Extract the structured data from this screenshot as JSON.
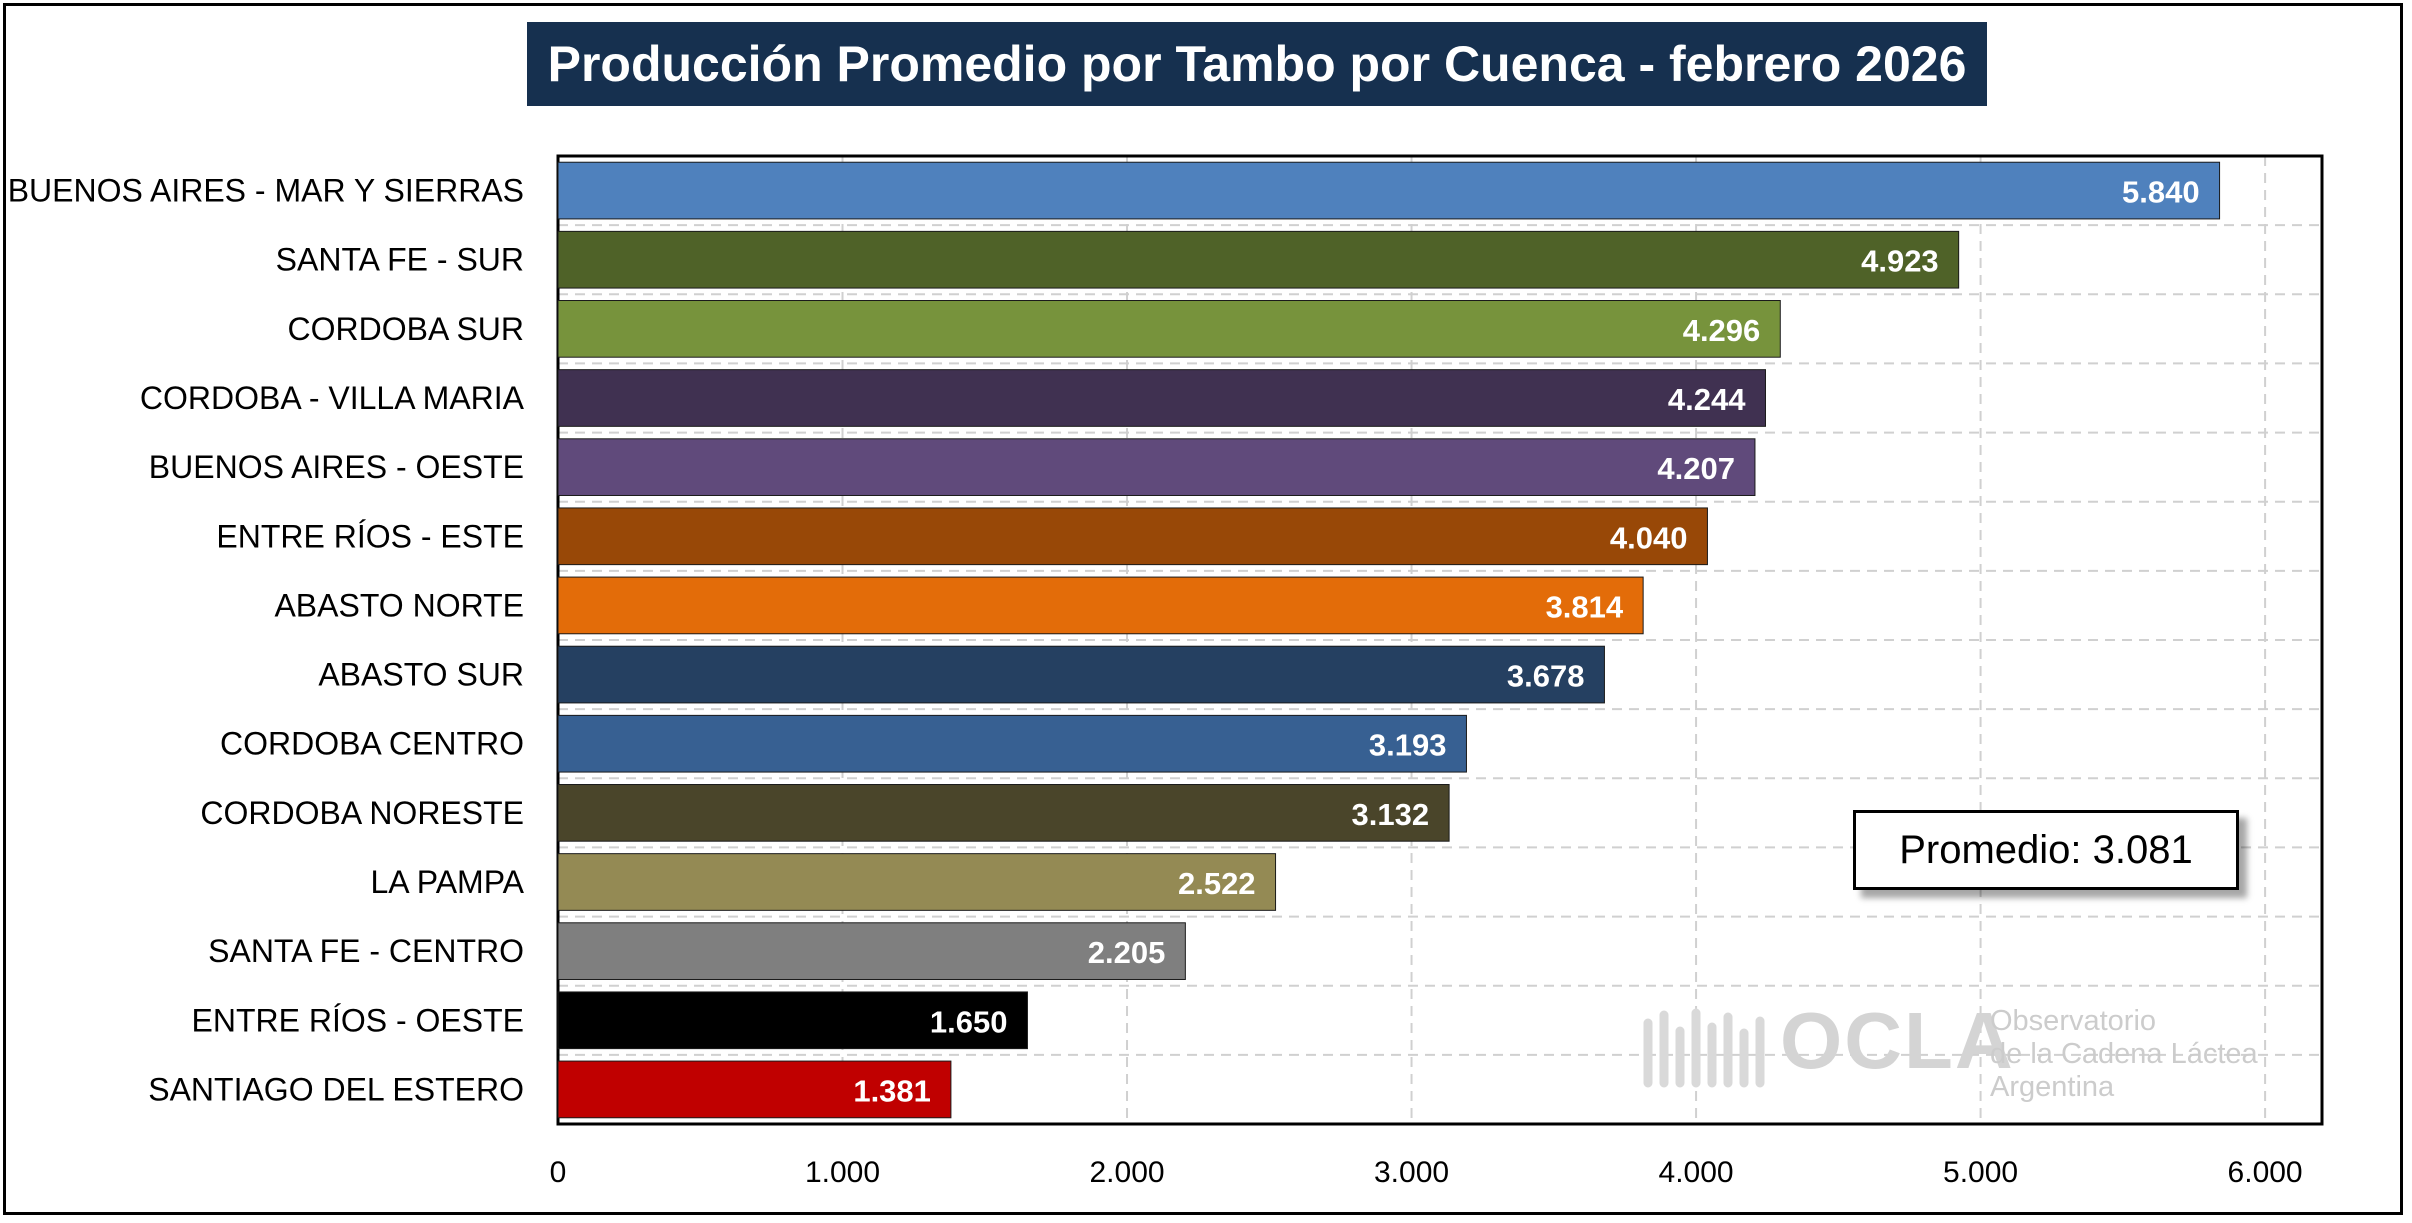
{
  "chart_data": {
    "type": "bar",
    "orientation": "horizontal",
    "title": "Producción Promedio por Tambo por Cuenca - febrero 2026",
    "categories": [
      "BUENOS AIRES - MAR Y SIERRAS",
      "SANTA FE - SUR",
      "CORDOBA SUR",
      "CORDOBA - VILLA MARIA",
      "BUENOS AIRES - OESTE",
      "ENTRE RÍOS - ESTE",
      "ABASTO NORTE",
      "ABASTO SUR",
      "CORDOBA CENTRO",
      "CORDOBA NORESTE",
      "LA PAMPA",
      "SANTA FE - CENTRO",
      "ENTRE RÍOS - OESTE",
      "SANTIAGO DEL ESTERO"
    ],
    "values": [
      5840,
      4923,
      4296,
      4244,
      4207,
      4040,
      3814,
      3678,
      3193,
      3132,
      2522,
      2205,
      1650,
      1381
    ],
    "value_labels": [
      "5.840",
      "4.923",
      "4.296",
      "4.244",
      "4.207",
      "4.040",
      "3.814",
      "3.678",
      "3.193",
      "3.132",
      "2.522",
      "2.205",
      "1.650",
      "1.381"
    ],
    "colors": [
      "#4f81bd",
      "#4f6228",
      "#77933c",
      "#403151",
      "#604a7b",
      "#984807",
      "#e36c09",
      "#254061",
      "#376092",
      "#4a452a",
      "#948a54",
      "#7f7f7f",
      "#000000",
      "#c00000"
    ],
    "xlim": [
      0,
      6200
    ],
    "x_ticks": [
      0,
      1000,
      2000,
      3000,
      4000,
      5000,
      6000
    ],
    "x_tick_labels": [
      "0",
      "1.000",
      "2.000",
      "3.000",
      "4.000",
      "5.000",
      "6.000"
    ],
    "grid": true,
    "annotation": "Promedio: 3.081",
    "xlabel": "",
    "ylabel": ""
  },
  "logo": {
    "wordmark": "OCLA",
    "line1": "Observatorio",
    "line2": "de la Cadena Láctea",
    "line3": "Argentina"
  }
}
